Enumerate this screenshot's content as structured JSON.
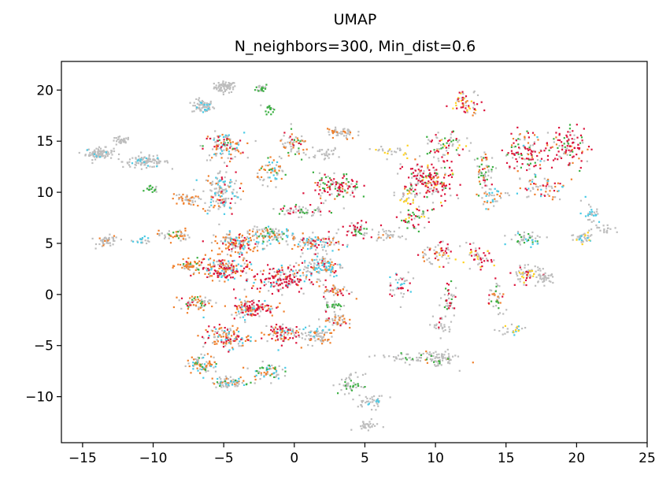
{
  "chart_data": {
    "type": "scatter",
    "title_line1": "UMAP",
    "title_line2": "N_neighbors=300, Min_dist=0.6",
    "xlabel": "",
    "ylabel": "",
    "xlim": [
      -16.5,
      25
    ],
    "ylim": [
      -14.5,
      22.8
    ],
    "xticks": [
      -15,
      -10,
      -5,
      0,
      5,
      10,
      15,
      20,
      25
    ],
    "xtick_labels": [
      "−15",
      "−10",
      "−5",
      "0",
      "5",
      "10",
      "15",
      "20",
      "25"
    ],
    "yticks": [
      -10,
      -5,
      0,
      5,
      10,
      15,
      20
    ],
    "ytick_labels": [
      "−10",
      "−5",
      "0",
      "5",
      "10",
      "15",
      "20"
    ],
    "grid": false,
    "colors": {
      "grey": "#bdbdbd",
      "crimson": "#dc143c",
      "orange": "#f0812d",
      "green": "#3cb043",
      "cyan": "#48cbe6",
      "yellow": "#ffd21f"
    },
    "clusters": [
      {
        "x": -4.9,
        "y": 20.3,
        "spread": [
          0.7,
          0.5
        ],
        "n": 70,
        "mix": {
          "grey": 1
        }
      },
      {
        "x": -6.5,
        "y": 18.4,
        "spread": [
          0.7,
          0.6
        ],
        "n": 70,
        "mix": {
          "grey": 0.85,
          "cyan": 0.15
        }
      },
      {
        "x": -2.3,
        "y": 20.2,
        "spread": [
          0.4,
          0.4
        ],
        "n": 30,
        "mix": {
          "grey": 0.6,
          "green": 0.4
        }
      },
      {
        "x": -1.8,
        "y": 18.2,
        "spread": [
          0.3,
          0.5
        ],
        "n": 18,
        "mix": {
          "green": 0.7,
          "grey": 0.3
        }
      },
      {
        "x": -13.8,
        "y": 13.8,
        "spread": [
          0.9,
          0.5
        ],
        "n": 90,
        "mix": {
          "grey": 0.95,
          "cyan": 0.05
        }
      },
      {
        "x": -10.5,
        "y": 13.0,
        "spread": [
          1.5,
          0.5
        ],
        "n": 100,
        "mix": {
          "grey": 0.9,
          "cyan": 0.1
        }
      },
      {
        "x": -12.3,
        "y": 15.0,
        "spread": [
          0.6,
          0.4
        ],
        "n": 30,
        "mix": {
          "grey": 1
        }
      },
      {
        "x": -10.1,
        "y": 10.3,
        "spread": [
          0.4,
          0.3
        ],
        "n": 15,
        "mix": {
          "green": 0.7,
          "grey": 0.3
        }
      },
      {
        "x": -13.2,
        "y": 5.2,
        "spread": [
          0.7,
          0.5
        ],
        "n": 45,
        "mix": {
          "grey": 0.9,
          "orange": 0.1
        }
      },
      {
        "x": -10.8,
        "y": 5.3,
        "spread": [
          0.6,
          0.3
        ],
        "n": 20,
        "mix": {
          "grey": 0.6,
          "cyan": 0.4
        }
      },
      {
        "x": -5.0,
        "y": 14.5,
        "spread": [
          1.3,
          1.2
        ],
        "n": 120,
        "mix": {
          "grey": 0.4,
          "orange": 0.25,
          "crimson": 0.15,
          "cyan": 0.15,
          "green": 0.05
        }
      },
      {
        "x": -5.2,
        "y": 10.0,
        "spread": [
          1.2,
          2.0
        ],
        "n": 150,
        "mix": {
          "grey": 0.55,
          "orange": 0.15,
          "cyan": 0.2,
          "crimson": 0.1
        }
      },
      {
        "x": -7.8,
        "y": 9.3,
        "spread": [
          0.8,
          0.5
        ],
        "n": 40,
        "mix": {
          "orange": 0.5,
          "grey": 0.5
        }
      },
      {
        "x": -8.5,
        "y": 5.8,
        "spread": [
          1.0,
          0.6
        ],
        "n": 50,
        "mix": {
          "grey": 0.5,
          "orange": 0.4,
          "green": 0.1
        }
      },
      {
        "x": -4.0,
        "y": 5.0,
        "spread": [
          1.5,
          1.0
        ],
        "n": 150,
        "mix": {
          "orange": 0.4,
          "grey": 0.3,
          "cyan": 0.15,
          "crimson": 0.15
        }
      },
      {
        "x": -1.5,
        "y": 5.8,
        "spread": [
          1.5,
          0.7
        ],
        "n": 120,
        "mix": {
          "grey": 0.55,
          "orange": 0.2,
          "cyan": 0.15,
          "green": 0.1
        }
      },
      {
        "x": 1.5,
        "y": 5.0,
        "spread": [
          1.5,
          0.8
        ],
        "n": 110,
        "mix": {
          "grey": 0.5,
          "orange": 0.2,
          "cyan": 0.15,
          "crimson": 0.15
        }
      },
      {
        "x": -7.3,
        "y": 2.8,
        "spread": [
          0.9,
          0.5
        ],
        "n": 60,
        "mix": {
          "orange": 0.55,
          "grey": 0.35,
          "green": 0.1
        }
      },
      {
        "x": -5.0,
        "y": 2.5,
        "spread": [
          1.6,
          1.0
        ],
        "n": 170,
        "mix": {
          "crimson": 0.3,
          "orange": 0.3,
          "grey": 0.25,
          "cyan": 0.15
        }
      },
      {
        "x": -1.0,
        "y": 1.5,
        "spread": [
          1.8,
          1.2
        ],
        "n": 180,
        "mix": {
          "crimson": 0.45,
          "grey": 0.3,
          "orange": 0.15,
          "cyan": 0.1
        }
      },
      {
        "x": 2.0,
        "y": 2.8,
        "spread": [
          1.3,
          1.0
        ],
        "n": 110,
        "mix": {
          "grey": 0.45,
          "cyan": 0.3,
          "orange": 0.15,
          "crimson": 0.1
        }
      },
      {
        "x": 3.0,
        "y": 0.3,
        "spread": [
          0.9,
          0.6
        ],
        "n": 50,
        "mix": {
          "grey": 0.5,
          "orange": 0.3,
          "crimson": 0.2
        }
      },
      {
        "x": -3.0,
        "y": -1.3,
        "spread": [
          1.5,
          0.8
        ],
        "n": 140,
        "mix": {
          "crimson": 0.35,
          "orange": 0.25,
          "grey": 0.3,
          "cyan": 0.1
        }
      },
      {
        "x": -7.0,
        "y": -0.8,
        "spread": [
          1.0,
          0.6
        ],
        "n": 60,
        "mix": {
          "grey": 0.4,
          "orange": 0.35,
          "green": 0.15,
          "crimson": 0.1
        }
      },
      {
        "x": -4.8,
        "y": -4.2,
        "spread": [
          1.5,
          1.0
        ],
        "n": 130,
        "mix": {
          "orange": 0.35,
          "grey": 0.3,
          "crimson": 0.2,
          "cyan": 0.15
        }
      },
      {
        "x": -1.0,
        "y": -3.8,
        "spread": [
          1.2,
          1.0
        ],
        "n": 90,
        "mix": {
          "crimson": 0.4,
          "orange": 0.25,
          "grey": 0.25,
          "cyan": 0.1
        }
      },
      {
        "x": 1.5,
        "y": -4.0,
        "spread": [
          1.2,
          0.8
        ],
        "n": 80,
        "mix": {
          "grey": 0.7,
          "orange": 0.2,
          "cyan": 0.1
        }
      },
      {
        "x": 3.0,
        "y": -2.5,
        "spread": [
          0.7,
          0.8
        ],
        "n": 50,
        "mix": {
          "grey": 0.6,
          "orange": 0.3,
          "crimson": 0.1
        }
      },
      {
        "x": 2.8,
        "y": -1.0,
        "spread": [
          0.6,
          0.4
        ],
        "n": 25,
        "mix": {
          "green": 0.5,
          "grey": 0.5
        }
      },
      {
        "x": -6.5,
        "y": -6.8,
        "spread": [
          1.0,
          0.8
        ],
        "n": 80,
        "mix": {
          "grey": 0.4,
          "orange": 0.35,
          "cyan": 0.15,
          "green": 0.1
        }
      },
      {
        "x": -4.5,
        "y": -8.6,
        "spread": [
          1.2,
          0.5
        ],
        "n": 70,
        "mix": {
          "grey": 0.55,
          "orange": 0.2,
          "cyan": 0.15,
          "green": 0.1
        }
      },
      {
        "x": -2.0,
        "y": -7.5,
        "spread": [
          1.0,
          0.7
        ],
        "n": 60,
        "mix": {
          "grey": 0.4,
          "green": 0.2,
          "orange": 0.2,
          "cyan": 0.2
        }
      },
      {
        "x": 0.5,
        "y": 8.2,
        "spread": [
          1.5,
          0.6
        ],
        "n": 60,
        "mix": {
          "grey": 0.6,
          "crimson": 0.2,
          "green": 0.2
        }
      },
      {
        "x": 3.0,
        "y": 10.5,
        "spread": [
          1.5,
          1.2
        ],
        "n": 120,
        "mix": {
          "crimson": 0.4,
          "green": 0.25,
          "grey": 0.25,
          "orange": 0.1
        }
      },
      {
        "x": -1.5,
        "y": 12.0,
        "spread": [
          1.0,
          1.0
        ],
        "n": 60,
        "mix": {
          "orange": 0.35,
          "grey": 0.4,
          "cyan": 0.15,
          "green": 0.1
        }
      },
      {
        "x": 0.0,
        "y": 14.5,
        "spread": [
          1.0,
          1.2
        ],
        "n": 60,
        "mix": {
          "grey": 0.5,
          "orange": 0.25,
          "green": 0.15,
          "crimson": 0.1
        }
      },
      {
        "x": 3.3,
        "y": 15.8,
        "spread": [
          1.0,
          0.6
        ],
        "n": 50,
        "mix": {
          "grey": 0.7,
          "orange": 0.3
        }
      },
      {
        "x": 2.0,
        "y": 13.8,
        "spread": [
          1.2,
          0.5
        ],
        "n": 30,
        "mix": {
          "grey": 1
        }
      },
      {
        "x": 4.5,
        "y": 6.5,
        "spread": [
          1.0,
          0.8
        ],
        "n": 50,
        "mix": {
          "crimson": 0.4,
          "grey": 0.4,
          "green": 0.2
        }
      },
      {
        "x": 6.5,
        "y": 5.8,
        "spread": [
          0.8,
          0.4
        ],
        "n": 30,
        "mix": {
          "grey": 0.9,
          "orange": 0.1
        }
      },
      {
        "x": 4.0,
        "y": -8.8,
        "spread": [
          0.8,
          0.9
        ],
        "n": 50,
        "mix": {
          "grey": 0.75,
          "green": 0.25
        }
      },
      {
        "x": 5.5,
        "y": -10.5,
        "spread": [
          1.0,
          0.6
        ],
        "n": 40,
        "mix": {
          "grey": 0.85,
          "cyan": 0.15
        }
      },
      {
        "x": 5.1,
        "y": -12.8,
        "spread": [
          0.8,
          0.4
        ],
        "n": 30,
        "mix": {
          "grey": 1
        }
      },
      {
        "x": 8.5,
        "y": -6.2,
        "spread": [
          2.5,
          0.5
        ],
        "n": 60,
        "mix": {
          "grey": 0.9,
          "green": 0.1
        }
      },
      {
        "x": 10.3,
        "y": -6.3,
        "spread": [
          1.0,
          0.7
        ],
        "n": 60,
        "mix": {
          "grey": 0.8,
          "green": 0.1,
          "orange": 0.1
        }
      },
      {
        "x": 9.5,
        "y": 11.0,
        "spread": [
          1.6,
          2.0
        ],
        "n": 200,
        "mix": {
          "crimson": 0.45,
          "grey": 0.3,
          "orange": 0.1,
          "green": 0.1,
          "yellow": 0.05
        }
      },
      {
        "x": 8.5,
        "y": 7.5,
        "spread": [
          1.0,
          1.0
        ],
        "n": 50,
        "mix": {
          "crimson": 0.3,
          "green": 0.3,
          "grey": 0.3,
          "yellow": 0.1
        }
      },
      {
        "x": 10.8,
        "y": 14.5,
        "spread": [
          1.2,
          1.2
        ],
        "n": 70,
        "mix": {
          "grey": 0.45,
          "crimson": 0.25,
          "green": 0.2,
          "yellow": 0.1
        }
      },
      {
        "x": 12.2,
        "y": 18.8,
        "spread": [
          1.0,
          1.0
        ],
        "n": 60,
        "mix": {
          "crimson": 0.35,
          "grey": 0.3,
          "yellow": 0.2,
          "orange": 0.15
        }
      },
      {
        "x": 13.5,
        "y": 12.0,
        "spread": [
          0.6,
          1.8
        ],
        "n": 60,
        "mix": {
          "grey": 0.45,
          "green": 0.25,
          "orange": 0.2,
          "crimson": 0.1
        }
      },
      {
        "x": 16.5,
        "y": 14.0,
        "spread": [
          1.5,
          1.8
        ],
        "n": 120,
        "mix": {
          "crimson": 0.45,
          "grey": 0.2,
          "orange": 0.15,
          "green": 0.15,
          "cyan": 0.05
        }
      },
      {
        "x": 19.5,
        "y": 14.5,
        "spread": [
          1.2,
          2.0
        ],
        "n": 100,
        "mix": {
          "crimson": 0.55,
          "grey": 0.2,
          "green": 0.15,
          "orange": 0.1
        }
      },
      {
        "x": 17.5,
        "y": 10.5,
        "spread": [
          1.5,
          1.0
        ],
        "n": 60,
        "mix": {
          "orange": 0.3,
          "grey": 0.35,
          "crimson": 0.2,
          "cyan": 0.15
        }
      },
      {
        "x": 14.0,
        "y": 9.5,
        "spread": [
          1.0,
          1.0
        ],
        "n": 40,
        "mix": {
          "grey": 0.5,
          "cyan": 0.25,
          "orange": 0.25
        }
      },
      {
        "x": 10.0,
        "y": 4.0,
        "spread": [
          1.3,
          1.0
        ],
        "n": 60,
        "mix": {
          "grey": 0.5,
          "crimson": 0.25,
          "orange": 0.15,
          "yellow": 0.1
        }
      },
      {
        "x": 13.0,
        "y": 3.5,
        "spread": [
          1.0,
          1.0
        ],
        "n": 50,
        "mix": {
          "crimson": 0.4,
          "grey": 0.4,
          "yellow": 0.2
        }
      },
      {
        "x": 16.5,
        "y": 2.0,
        "spread": [
          1.0,
          0.8
        ],
        "n": 70,
        "mix": {
          "grey": 0.7,
          "crimson": 0.15,
          "yellow": 0.15
        }
      },
      {
        "x": 17.8,
        "y": 1.6,
        "spread": [
          0.5,
          0.4
        ],
        "n": 30,
        "mix": {
          "grey": 1
        }
      },
      {
        "x": 16.5,
        "y": 5.5,
        "spread": [
          1.2,
          0.6
        ],
        "n": 50,
        "mix": {
          "grey": 0.6,
          "cyan": 0.2,
          "green": 0.2
        }
      },
      {
        "x": 20.5,
        "y": 5.5,
        "spread": [
          0.8,
          0.6
        ],
        "n": 40,
        "mix": {
          "grey": 0.7,
          "cyan": 0.15,
          "yellow": 0.15
        }
      },
      {
        "x": 22.0,
        "y": 6.5,
        "spread": [
          0.8,
          0.4
        ],
        "n": 20,
        "mix": {
          "grey": 1
        }
      },
      {
        "x": 21.0,
        "y": 8.0,
        "spread": [
          0.6,
          1.0
        ],
        "n": 30,
        "mix": {
          "cyan": 0.4,
          "grey": 0.6
        }
      },
      {
        "x": 7.5,
        "y": 1.0,
        "spread": [
          0.8,
          1.2
        ],
        "n": 40,
        "mix": {
          "grey": 0.5,
          "crimson": 0.3,
          "cyan": 0.2
        }
      },
      {
        "x": 11.0,
        "y": -0.5,
        "spread": [
          0.6,
          1.2
        ],
        "n": 40,
        "mix": {
          "grey": 0.5,
          "crimson": 0.3,
          "green": 0.2
        }
      },
      {
        "x": 10.5,
        "y": -3.0,
        "spread": [
          0.6,
          1.0
        ],
        "n": 30,
        "mix": {
          "grey": 0.9,
          "crimson": 0.1
        }
      },
      {
        "x": 14.3,
        "y": -0.5,
        "spread": [
          0.6,
          1.8
        ],
        "n": 40,
        "mix": {
          "grey": 0.5,
          "green": 0.2,
          "orange": 0.2,
          "crimson": 0.1
        }
      },
      {
        "x": 15.5,
        "y": -3.5,
        "spread": [
          1.0,
          0.4
        ],
        "n": 25,
        "mix": {
          "grey": 0.6,
          "cyan": 0.2,
          "yellow": 0.2
        }
      },
      {
        "x": 7.0,
        "y": 14.0,
        "spread": [
          1.0,
          0.5
        ],
        "n": 25,
        "mix": {
          "grey": 0.7,
          "yellow": 0.3
        }
      },
      {
        "x": 8.0,
        "y": 9.5,
        "spread": [
          0.6,
          0.6
        ],
        "n": 20,
        "mix": {
          "yellow": 0.5,
          "grey": 0.5
        }
      }
    ]
  }
}
